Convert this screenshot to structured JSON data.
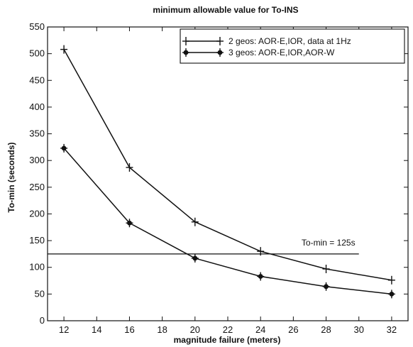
{
  "chart_data": {
    "type": "line",
    "title": "minimum allowable value for To-INS",
    "xlabel": "magnitude failure (meters)",
    "ylabel": "To-min (seconds)",
    "xlim": [
      11,
      33
    ],
    "ylim": [
      0,
      550
    ],
    "x_ticks": [
      12,
      14,
      16,
      18,
      20,
      22,
      24,
      26,
      28,
      30,
      32
    ],
    "y_ticks": [
      0,
      50,
      100,
      150,
      200,
      250,
      300,
      350,
      400,
      450,
      500,
      550
    ],
    "x": [
      12,
      16,
      20,
      24,
      28,
      32
    ],
    "series": [
      {
        "name": "2 geos: AOR-E,IOR,  data at 1Hz",
        "marker": "+",
        "values": [
          508,
          287,
          185,
          130,
          97,
          76
        ]
      },
      {
        "name": "3 geos: AOR-E,IOR,AOR-W",
        "marker": "filled-plus",
        "values": [
          323,
          183,
          117,
          83,
          64,
          50
        ]
      }
    ],
    "reference_line": {
      "y": 125,
      "x_range": [
        11,
        30
      ],
      "label": "To-min = 125s"
    },
    "legend_position": "top-right",
    "grid": false,
    "colors": {
      "lines": "#111111",
      "background": "#ffffff"
    }
  }
}
